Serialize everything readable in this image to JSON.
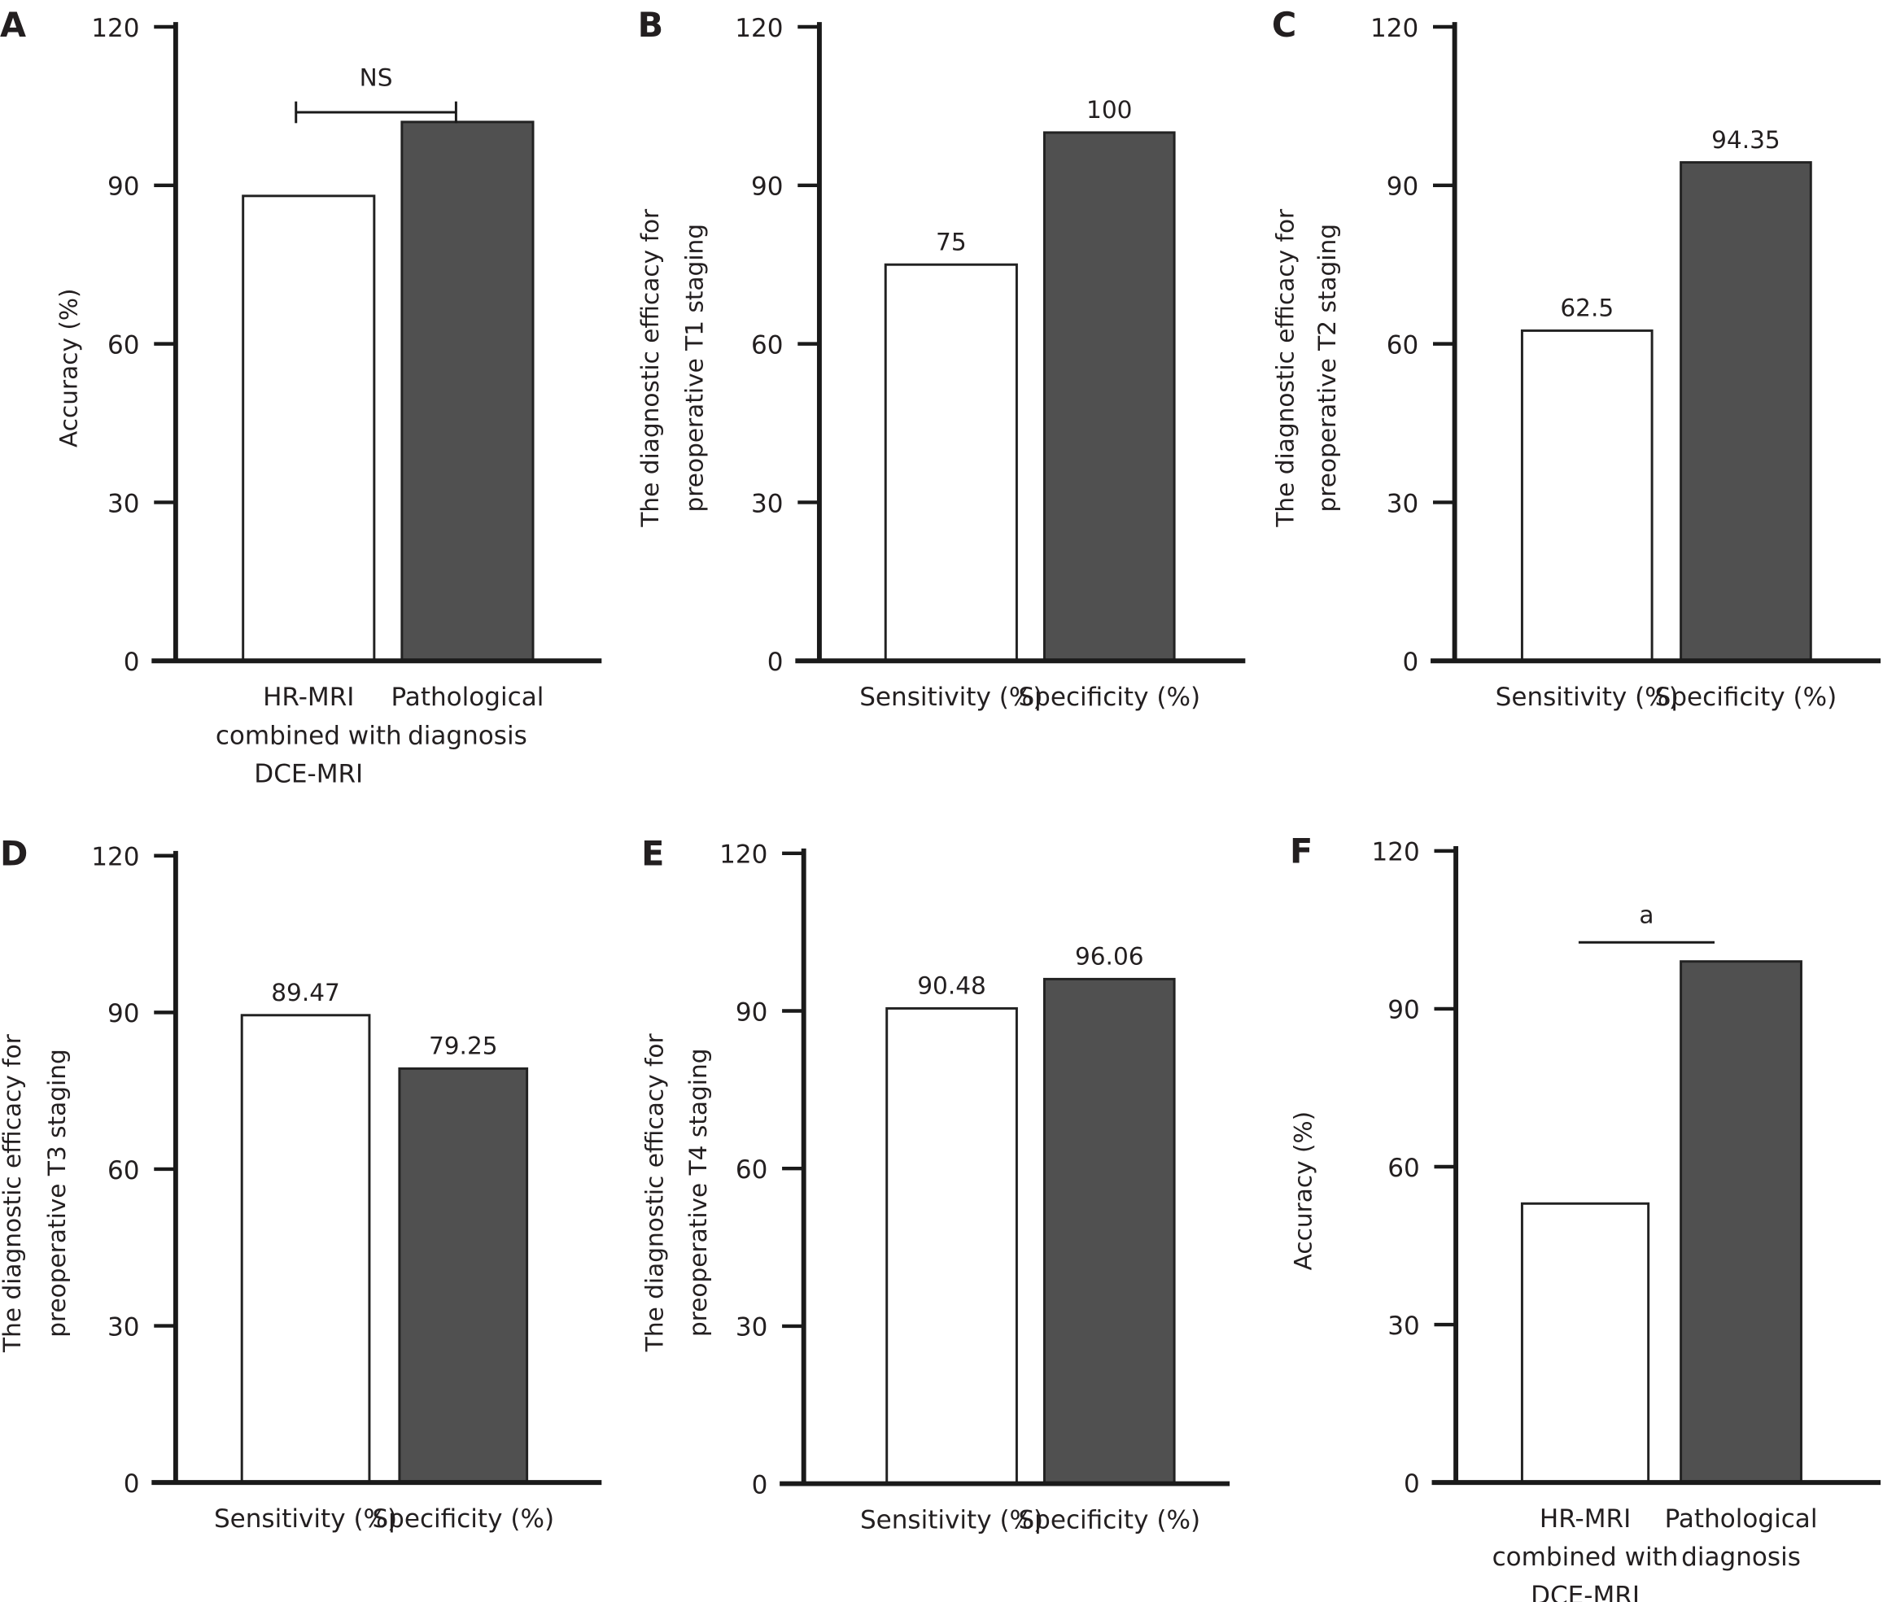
{
  "colors": {
    "bar_light": "#ffffff",
    "bar_dark": "#505050",
    "axis": "#1a1a1a"
  },
  "chart_data": [
    {
      "panel": "A",
      "type": "bar",
      "ylabel": [
        "Accuracy (%)"
      ],
      "ylim": [
        0,
        120
      ],
      "yticks": [
        0,
        30,
        60,
        90,
        120
      ],
      "categories": [
        [
          "HR-MRI",
          "combined with",
          "DCE-MRI"
        ],
        [
          "Pathological",
          "diagnosis"
        ]
      ],
      "values": [
        88,
        102
      ],
      "data_labels": null,
      "annotation": {
        "text": "NS",
        "style": "bracket"
      }
    },
    {
      "panel": "B",
      "type": "bar",
      "ylabel": [
        "The diagnostic efficacy for",
        "preoperative T1 staging"
      ],
      "ylim": [
        0,
        120
      ],
      "yticks": [
        0,
        30,
        60,
        90,
        120
      ],
      "categories": [
        [
          "Sensitivity (%)"
        ],
        [
          "Specificity (%)"
        ]
      ],
      "values": [
        75,
        100
      ],
      "data_labels": [
        "75",
        "100"
      ]
    },
    {
      "panel": "C",
      "type": "bar",
      "ylabel": [
        "The diagnostic efficacy for",
        "preoperative T2 staging"
      ],
      "ylim": [
        0,
        120
      ],
      "yticks": [
        0,
        30,
        60,
        90,
        120
      ],
      "categories": [
        [
          "Sensitivity (%)"
        ],
        [
          "Specificity (%)"
        ]
      ],
      "values": [
        62.5,
        94.35
      ],
      "data_labels": [
        "62.5",
        "94.35"
      ]
    },
    {
      "panel": "D",
      "type": "bar",
      "ylabel": [
        "The diagnostic efficacy for",
        "preoperative T3 staging"
      ],
      "ylim": [
        0,
        120
      ],
      "yticks": [
        0,
        30,
        60,
        90,
        120
      ],
      "categories": [
        [
          "Sensitivity (%)"
        ],
        [
          "Specificity (%)"
        ]
      ],
      "values": [
        89.47,
        79.25
      ],
      "data_labels": [
        "89.47",
        "79.25"
      ]
    },
    {
      "panel": "E",
      "type": "bar",
      "ylabel": [
        "The diagnostic efficacy for",
        "preoperative T4 staging"
      ],
      "ylim": [
        0,
        120
      ],
      "yticks": [
        0,
        30,
        60,
        90,
        120
      ],
      "categories": [
        [
          "Sensitivity (%)"
        ],
        [
          "Specificity (%)"
        ]
      ],
      "values": [
        90.48,
        96.06
      ],
      "data_labels": [
        "90.48",
        "96.06"
      ]
    },
    {
      "panel": "F",
      "type": "bar",
      "ylabel": [
        "Accuracy (%)"
      ],
      "ylim": [
        0,
        120
      ],
      "yticks": [
        0,
        30,
        60,
        90,
        120
      ],
      "categories": [
        [
          "HR-MRI",
          "combined with",
          "DCE-MRI"
        ],
        [
          "Pathological",
          "diagnosis"
        ]
      ],
      "values": [
        53,
        99
      ],
      "data_labels": null,
      "annotation": {
        "text": "a",
        "style": "line"
      }
    }
  ]
}
